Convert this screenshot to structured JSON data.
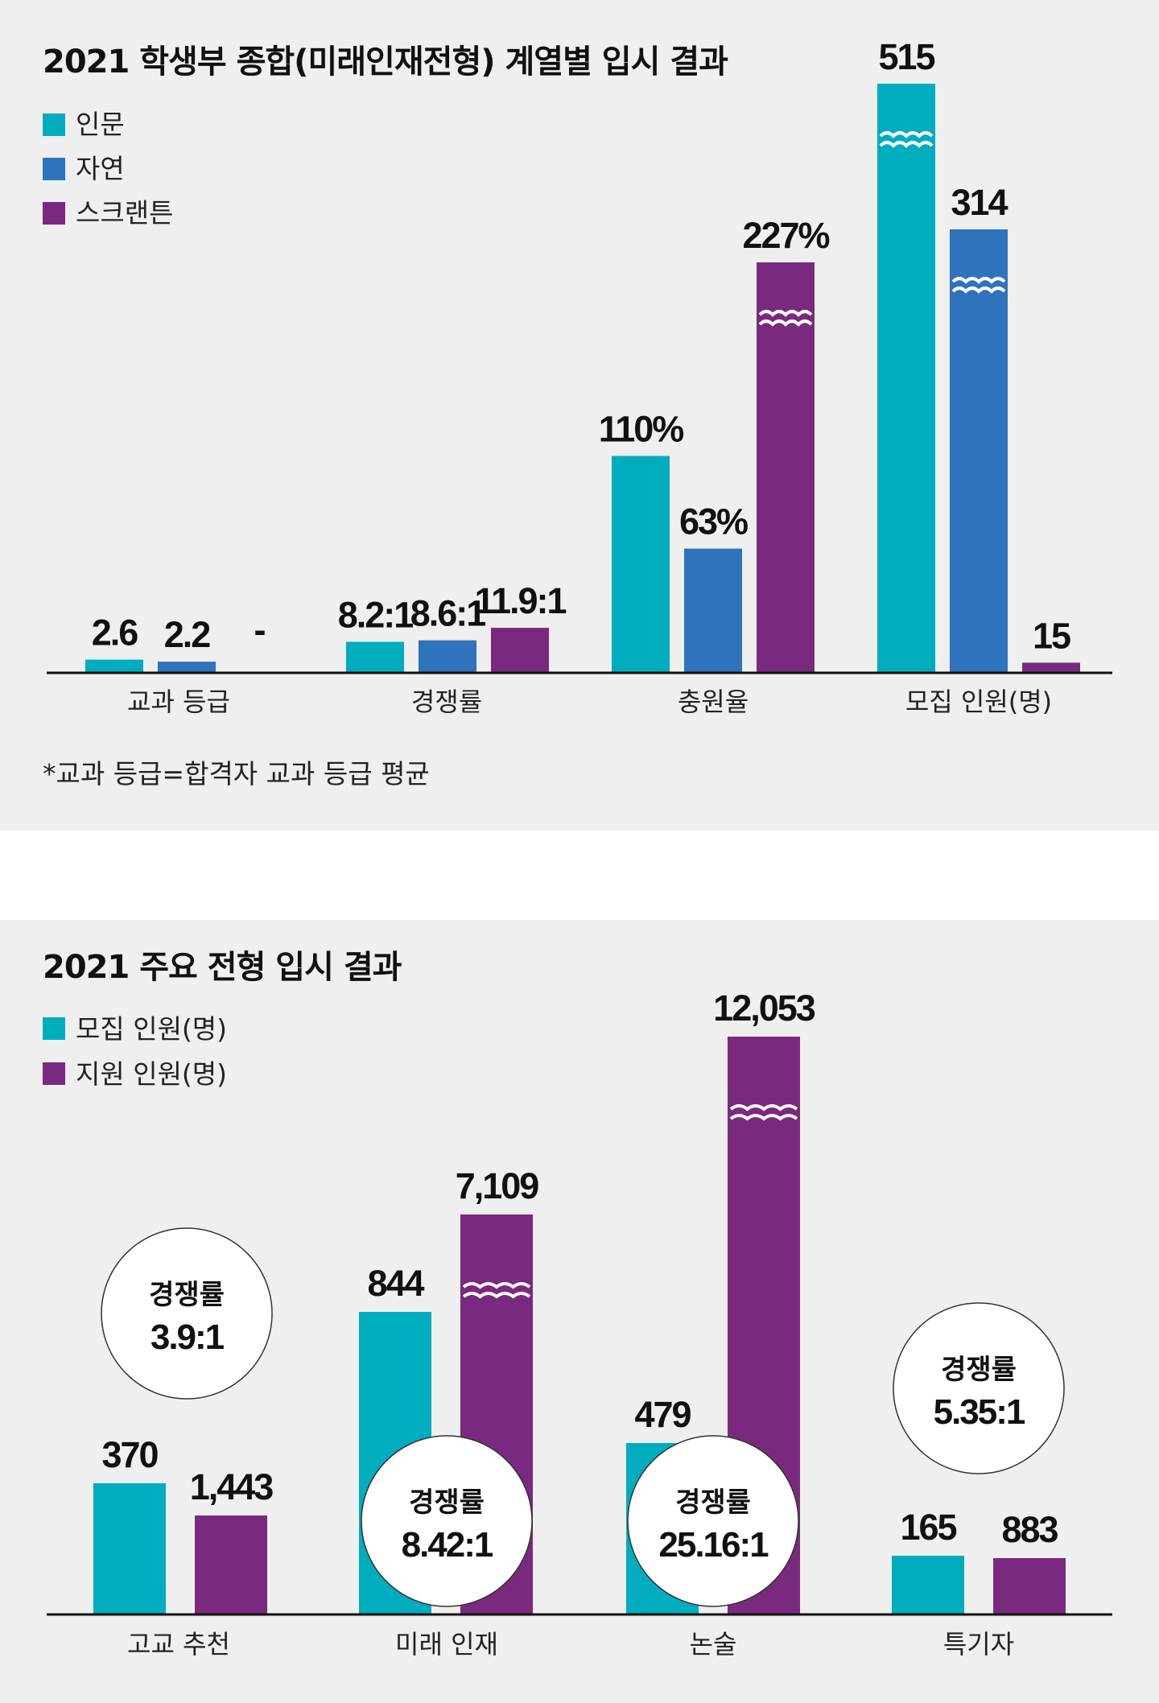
{
  "colors": {
    "teal": "#00adbf",
    "blue": "#2f73bd",
    "purple": "#7a2a7e",
    "axis": "#111111"
  },
  "chart_data": [
    {
      "type": "bar",
      "title": "2021 학생부 종합(미래인재전형) 계열별 입시 결과",
      "legend": [
        {
          "label": "인문",
          "color": "teal"
        },
        {
          "label": "자연",
          "color": "blue"
        },
        {
          "label": "스크랜튼",
          "color": "purple"
        }
      ],
      "categories": [
        "교과 등급",
        "경쟁률",
        "충원율",
        "모집 인원(명)"
      ],
      "series": [
        {
          "name": "인문",
          "values": [
            2.6,
            8.2,
            110,
            515
          ],
          "labels": [
            "2.6",
            "8.2:1",
            "110%",
            "515"
          ]
        },
        {
          "name": "자연",
          "values": [
            2.2,
            8.6,
            63,
            314
          ],
          "labels": [
            "2.2",
            "8.6:1",
            "63%",
            "314"
          ]
        },
        {
          "name": "스크랜튼",
          "values": [
            null,
            11.9,
            227,
            15
          ],
          "labels": [
            "-",
            "11.9:1",
            "227%",
            "15"
          ]
        }
      ],
      "axis_break_bars": [
        [
          2,
          2
        ],
        [
          0,
          3
        ],
        [
          1,
          3
        ]
      ],
      "note": "*교과 등급=합격자 교과 등급 평균"
    },
    {
      "type": "bar",
      "title": "2021 주요 전형 입시 결과",
      "legend": [
        {
          "label": "모집 인원(명)",
          "color": "teal"
        },
        {
          "label": "지원 인원(명)",
          "color": "purple"
        }
      ],
      "categories": [
        "고교 추천",
        "미래 인재",
        "논술",
        "특기자"
      ],
      "series": [
        {
          "name": "모집 인원(명)",
          "values": [
            370,
            844,
            479,
            165
          ],
          "labels": [
            "370",
            "844",
            "479",
            "165"
          ]
        },
        {
          "name": "지원 인원(명)",
          "values": [
            1443,
            7109,
            12053,
            883
          ],
          "labels": [
            "1,443",
            "7,109",
            "12,053",
            "883"
          ]
        }
      ],
      "axis_break_bars": [
        [
          1,
          1
        ],
        [
          1,
          2
        ]
      ],
      "ratios": [
        {
          "label": "경쟁률",
          "value": "3.9:1"
        },
        {
          "label": "경쟁률",
          "value": "8.42:1"
        },
        {
          "label": "경쟁률",
          "value": "25.16:1"
        },
        {
          "label": "경쟁률",
          "value": "5.35:1"
        }
      ]
    }
  ]
}
